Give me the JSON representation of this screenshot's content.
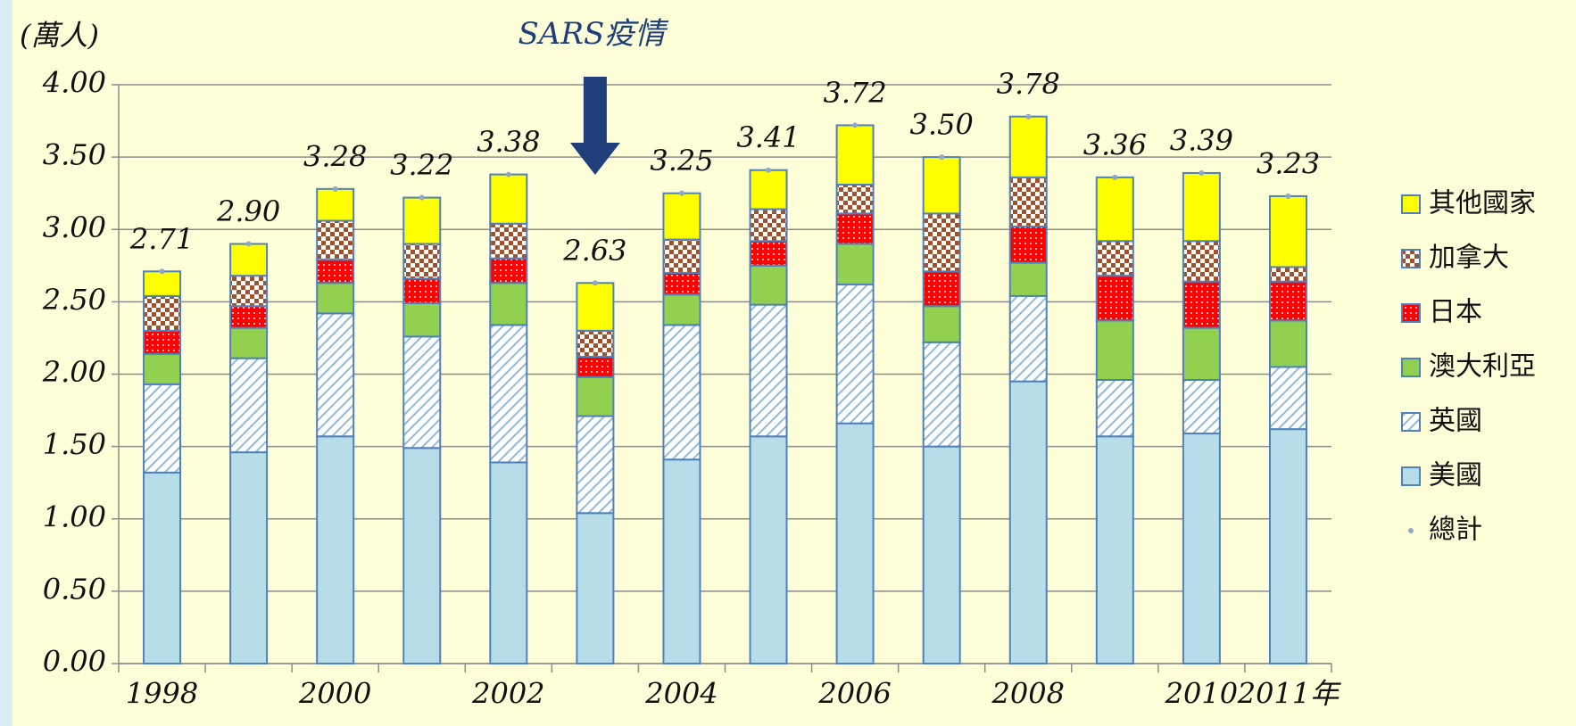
{
  "chart_data": {
    "type": "bar",
    "stacked": true,
    "y_label": "(萬人)",
    "annotation": "SARS疫情",
    "annotation_category": 5,
    "categories": [
      "1998",
      null,
      "2000",
      null,
      "2002",
      null,
      "2004",
      null,
      "2006",
      null,
      "2008",
      null,
      "2010",
      "2011年"
    ],
    "series": [
      {
        "name": "美國",
        "color": "#b7dde8",
        "pattern": "solid",
        "values": [
          1.32,
          1.46,
          1.57,
          1.49,
          1.39,
          1.04,
          1.41,
          1.57,
          1.66,
          1.5,
          1.95,
          1.57,
          1.59,
          1.62
        ]
      },
      {
        "name": "英國",
        "color": "#93b9d9",
        "pattern": "hatch",
        "values": [
          0.61,
          0.65,
          0.85,
          0.77,
          0.95,
          0.67,
          0.93,
          0.91,
          0.96,
          0.72,
          0.59,
          0.39,
          0.37,
          0.43
        ]
      },
      {
        "name": "澳大利亞",
        "color": "#92d050",
        "pattern": "solid",
        "values": [
          0.21,
          0.21,
          0.21,
          0.23,
          0.29,
          0.27,
          0.21,
          0.27,
          0.28,
          0.25,
          0.23,
          0.41,
          0.36,
          0.32
        ]
      },
      {
        "name": "日本",
        "color": "#ff0000",
        "pattern": "dots",
        "values": [
          0.16,
          0.15,
          0.16,
          0.17,
          0.17,
          0.14,
          0.15,
          0.17,
          0.21,
          0.24,
          0.25,
          0.31,
          0.32,
          0.27
        ]
      },
      {
        "name": "加拿大",
        "color": "#a0522d",
        "pattern": "check",
        "values": [
          0.24,
          0.21,
          0.27,
          0.24,
          0.24,
          0.18,
          0.23,
          0.22,
          0.2,
          0.4,
          0.34,
          0.24,
          0.28,
          0.1
        ]
      },
      {
        "name": "其他國家",
        "color": "#ffff00",
        "pattern": "solid",
        "values": [
          0.17,
          0.22,
          0.22,
          0.32,
          0.34,
          0.33,
          0.32,
          0.27,
          0.41,
          0.39,
          0.42,
          0.44,
          0.47,
          0.49
        ]
      }
    ],
    "total": {
      "name": "總計",
      "color": "#8fa8c8",
      "values": [
        2.71,
        2.9,
        3.28,
        3.22,
        3.38,
        2.63,
        3.25,
        3.41,
        3.72,
        3.5,
        3.78,
        3.36,
        3.39,
        3.23
      ],
      "value_labels": [
        "2.71",
        "2.90",
        "3.28",
        "3.22",
        "3.38",
        "2.63",
        "3.25",
        "3.41",
        "3.72",
        "3.50",
        "3.78",
        "3.36",
        "3.39",
        "3.23"
      ]
    },
    "ylim": [
      0,
      4
    ],
    "yticks": [
      {
        "value": 0,
        "label": "0.00"
      },
      {
        "value": 0.5,
        "label": "0.50"
      },
      {
        "value": 1,
        "label": "1.00"
      },
      {
        "value": 1.5,
        "label": "1.50"
      },
      {
        "value": 2,
        "label": "2.00"
      },
      {
        "value": 2.5,
        "label": "2.50"
      },
      {
        "value": 3,
        "label": "3.00"
      },
      {
        "value": 3.5,
        "label": "3.50"
      },
      {
        "value": 4,
        "label": "4.00"
      }
    ],
    "grid": true
  }
}
